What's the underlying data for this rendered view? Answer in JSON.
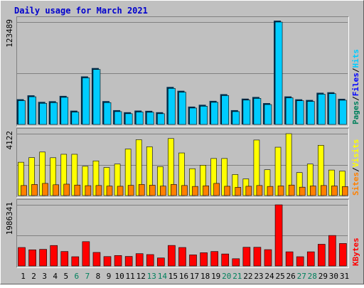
{
  "title": "Daily usage for March 2021",
  "colors": {
    "background": "#c0c0c0",
    "title": "#0000cc",
    "hits": "#00ccff",
    "files": "#0000ff",
    "pages": "#00805c",
    "visits": "#ffff00",
    "sites": "#ff8000",
    "kbytes": "#ff0000",
    "weekday_label": "#000000",
    "weekend_label": "#00805c"
  },
  "chart_data": [
    {
      "type": "bar",
      "name": "hits-files-pages",
      "categories": [
        "1",
        "2",
        "3",
        "4",
        "5",
        "6",
        "7",
        "8",
        "9",
        "10",
        "11",
        "12",
        "13",
        "14",
        "15",
        "16",
        "17",
        "18",
        "19",
        "20",
        "21",
        "22",
        "23",
        "24",
        "25",
        "26",
        "27",
        "28",
        "29",
        "30",
        "31"
      ],
      "weekend_days": [
        "6",
        "7",
        "13",
        "14",
        "20",
        "21",
        "27",
        "28"
      ],
      "ymax_label": "123489",
      "ylim": [
        0,
        123489
      ],
      "legend": [
        "Pages",
        "Files",
        "Hits"
      ],
      "legend_separator": "/",
      "series": [
        {
          "name": "Hits",
          "values": [
            28700,
            33400,
            25500,
            26300,
            32700,
            14900,
            56200,
            66300,
            26400,
            15500,
            13000,
            15000,
            14700,
            13000,
            43500,
            38900,
            19800,
            22000,
            26700,
            34800,
            15500,
            29400,
            31400,
            24000,
            123489,
            32100,
            28600,
            27800,
            36500,
            37100,
            29200
          ]
        }
      ]
    },
    {
      "type": "bar",
      "name": "visits-sites",
      "categories": [
        "1",
        "2",
        "3",
        "4",
        "5",
        "6",
        "7",
        "8",
        "9",
        "10",
        "11",
        "12",
        "13",
        "14",
        "15",
        "16",
        "17",
        "18",
        "19",
        "20",
        "21",
        "22",
        "23",
        "24",
        "25",
        "26",
        "27",
        "28",
        "29",
        "30",
        "31"
      ],
      "ymax_label": "4122",
      "ylim": [
        0,
        4122
      ],
      "legend": [
        "Sites",
        "Visits"
      ],
      "legend_separator": "/",
      "series": [
        {
          "name": "Visits",
          "values": [
            2220,
            2530,
            2900,
            2520,
            2750,
            2750,
            1950,
            2310,
            1870,
            2100,
            3100,
            3720,
            3250,
            1930,
            3800,
            2840,
            1790,
            2020,
            2470,
            2470,
            1400,
            1110,
            3700,
            1720,
            3220,
            4122,
            1530,
            2100,
            3350,
            1700,
            1630
          ]
        },
        {
          "name": "Sites",
          "values": [
            670,
            740,
            810,
            720,
            760,
            700,
            660,
            670,
            630,
            620,
            680,
            740,
            690,
            630,
            740,
            670,
            610,
            650,
            810,
            620,
            550,
            620,
            670,
            610,
            640,
            700,
            560,
            640,
            670,
            640,
            600
          ]
        }
      ]
    },
    {
      "type": "bar",
      "name": "kbytes",
      "categories": [
        "1",
        "2",
        "3",
        "4",
        "5",
        "6",
        "7",
        "8",
        "9",
        "10",
        "11",
        "12",
        "13",
        "14",
        "15",
        "16",
        "17",
        "18",
        "19",
        "20",
        "21",
        "22",
        "23",
        "24",
        "25",
        "26",
        "27",
        "28",
        "29",
        "30",
        "31"
      ],
      "ymax_label": "1986341",
      "ylim": [
        0,
        1986341
      ],
      "legend": [
        "KBytes"
      ],
      "series": [
        {
          "name": "KBytes",
          "values": [
            600000,
            525000,
            540000,
            665000,
            470000,
            300000,
            790000,
            440000,
            305000,
            340000,
            310000,
            400000,
            370000,
            260000,
            667000,
            600000,
            360000,
            430000,
            470000,
            390000,
            235000,
            607000,
            607000,
            530000,
            1986341,
            460000,
            300000,
            460000,
            705000,
            990000,
            730000
          ]
        }
      ]
    }
  ]
}
